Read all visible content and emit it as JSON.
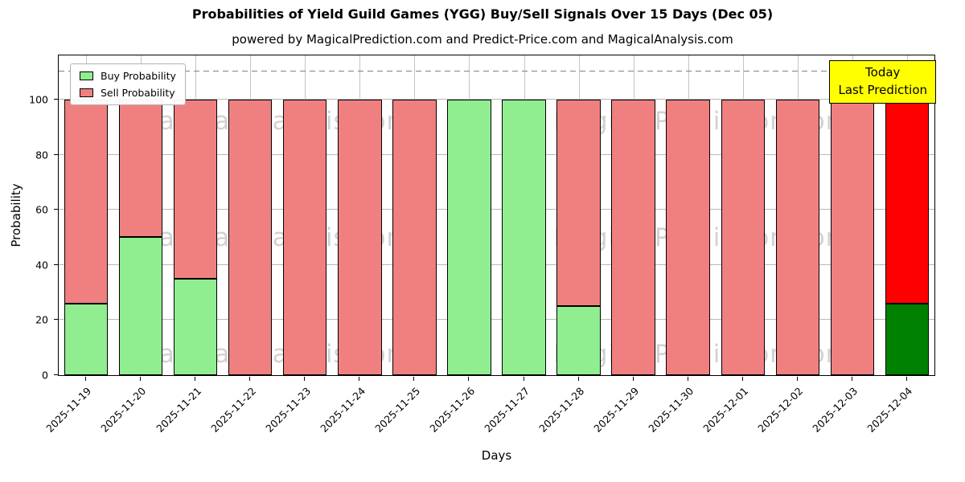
{
  "title": "Probabilities of Yield Guild Games (YGG) Buy/Sell Signals Over 15 Days (Dec 05)",
  "subtitle": "powered by MagicalPrediction.com and Predict-Price.com and MagicalAnalysis.com",
  "legend": {
    "buy_label": "Buy Probability",
    "sell_label": "Sell Probability"
  },
  "annotation": {
    "line1": "Today",
    "line2": "Last Prediction"
  },
  "axes": {
    "ylabel": "Probability",
    "xlabel": "Days",
    "yticks": [
      0,
      20,
      40,
      60,
      80,
      100
    ],
    "dashed_y": 110
  },
  "watermarks": [
    "MagicalAnalysis.com",
    "MagicalPrediction.com"
  ],
  "colors": {
    "buy": "#90ee90",
    "sell": "#f08080",
    "today_buy": "#008000",
    "today_sell": "#ff0000",
    "annotation_bg": "#ffff00",
    "grid": "#b8b8b8"
  },
  "chart_data": {
    "type": "bar",
    "stacked": true,
    "title": "Probabilities of Yield Guild Games (YGG) Buy/Sell Signals Over 15 Days (Dec 05)",
    "xlabel": "Days",
    "ylabel": "Probability",
    "ylim": [
      0,
      116
    ],
    "grid": true,
    "legend_position": "upper left",
    "categories": [
      "2025-11-19",
      "2025-11-20",
      "2025-11-21",
      "2025-11-22",
      "2025-11-23",
      "2025-11-24",
      "2025-11-25",
      "2025-11-26",
      "2025-11-27",
      "2025-11-28",
      "2025-11-29",
      "2025-11-30",
      "2025-12-01",
      "2025-12-02",
      "2025-12-03",
      "2025-12-04"
    ],
    "series": [
      {
        "name": "Buy Probability",
        "values": [
          26,
          50,
          35,
          0,
          0,
          0,
          0,
          100,
          100,
          25,
          0,
          0,
          0,
          0,
          0,
          26
        ]
      },
      {
        "name": "Sell Probability",
        "values": [
          74,
          50,
          65,
          100,
          100,
          100,
          100,
          0,
          0,
          75,
          100,
          100,
          100,
          100,
          100,
          74
        ]
      }
    ],
    "highlight_last_bar": true,
    "threshold_line": 110
  }
}
